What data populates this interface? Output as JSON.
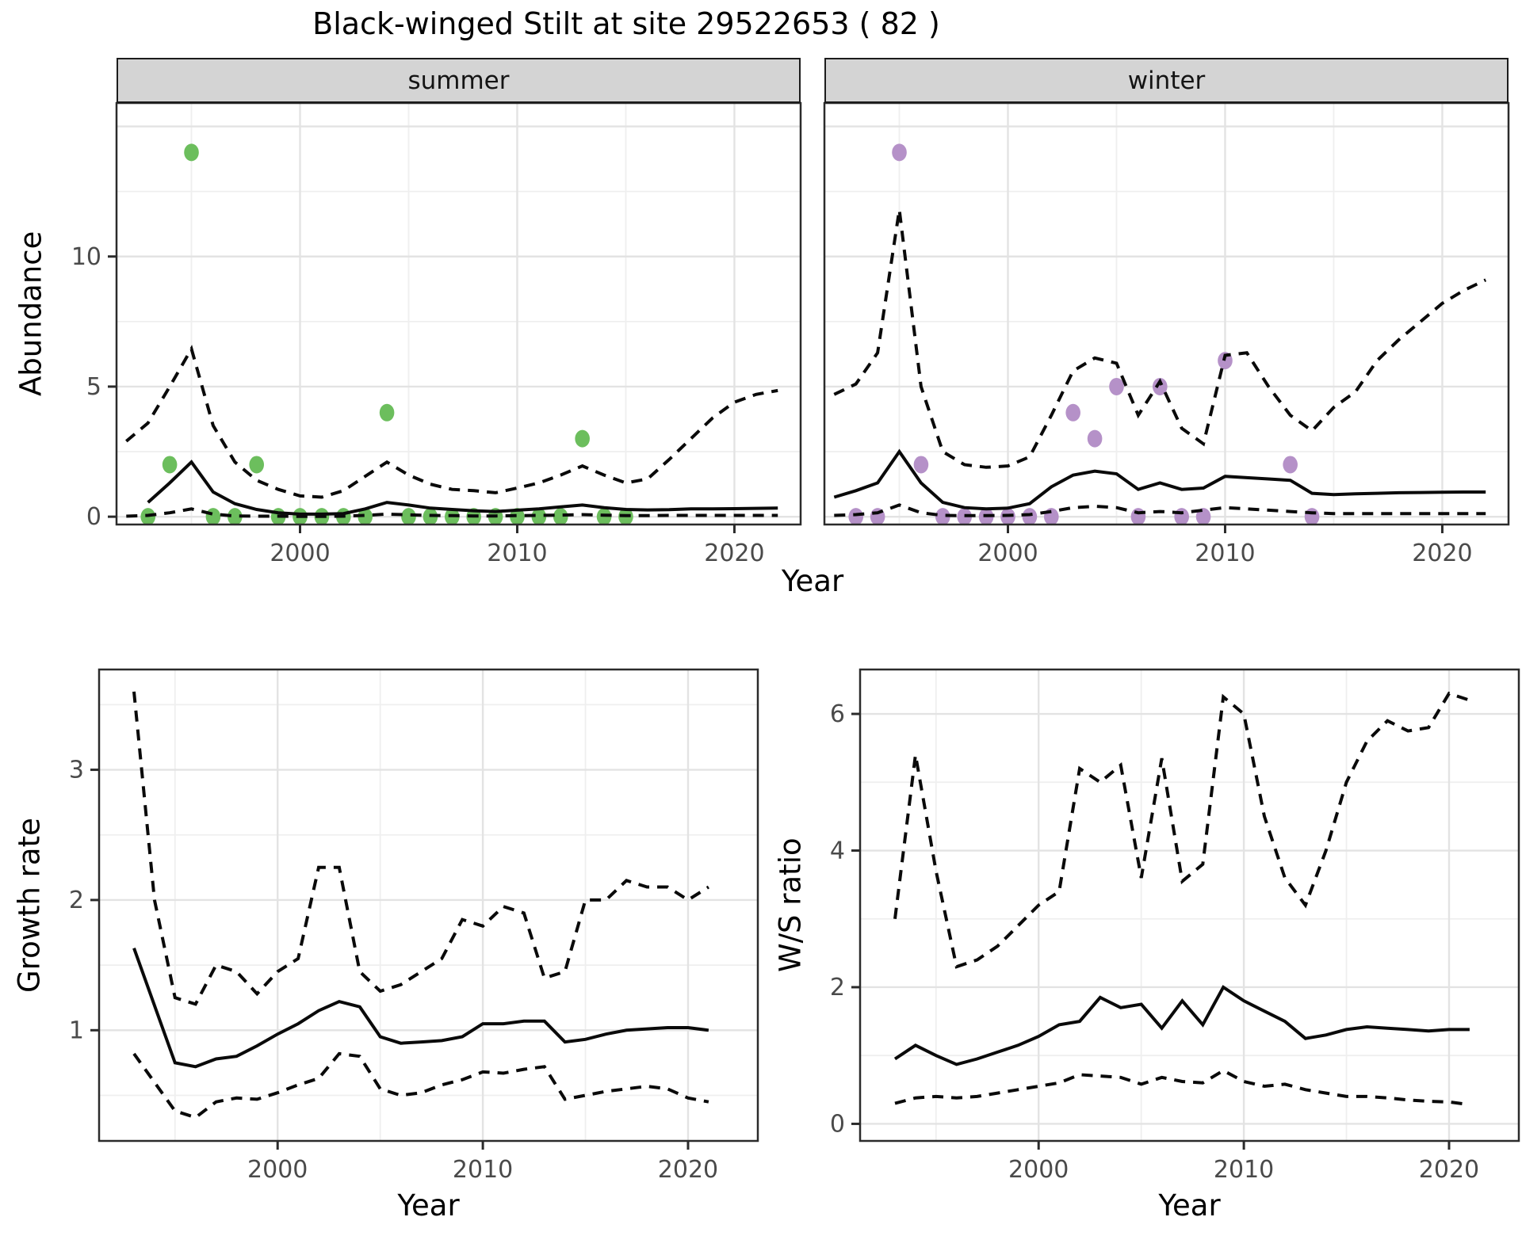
{
  "title": "Black-winged Stilt at site 29522653 ( 82 )",
  "facets": {
    "summer": "summer",
    "winter": "winter"
  },
  "axis_titles": {
    "abundance": "Abundance",
    "year": "Year",
    "growth": "Growth rate",
    "ws": "W/S ratio"
  },
  "colors": {
    "summer_point": "#6cbe5d",
    "winter_point": "#b591c8",
    "line": "#0a0a0a",
    "grid_major": "#e3e3e3",
    "grid_minor": "#efefef",
    "panel_border": "#2b2b2b",
    "tick_text": "#4a4a4a",
    "strip_bg": "#d4d4d4"
  },
  "chart_data": [
    {
      "key": "summer",
      "type": "line+scatter",
      "title": "summer",
      "xlabel": "Year",
      "ylabel": "Abundance",
      "xlim": [
        1991.55,
        2023.05
      ],
      "ylim": [
        -0.3,
        15.9
      ],
      "xticks": [
        2000,
        2010,
        2020
      ],
      "yticks": [
        0,
        5,
        10
      ],
      "show_y_labels": true,
      "xgrid_minor": [
        1995,
        2005,
        2015
      ],
      "ygrid_major": [
        0,
        5,
        10,
        15
      ],
      "ygrid_minor": [
        2.5,
        7.5,
        12.5
      ],
      "point_color": "#6cbe5d",
      "points": {
        "years": [
          1993,
          1994,
          1995,
          1996,
          1997,
          1998,
          1999,
          2000,
          2001,
          2002,
          2003,
          2004,
          2005,
          2006,
          2007,
          2008,
          2009,
          2010,
          2011,
          2012,
          2013,
          2014,
          2015
        ],
        "values": [
          0,
          2,
          14,
          0,
          0,
          2,
          0,
          0,
          0,
          0,
          0,
          4,
          0,
          0,
          0,
          0,
          0,
          0,
          0,
          0,
          3,
          0,
          0
        ]
      },
      "median": {
        "start_year": 1993,
        "values": [
          0.55,
          1.3,
          2.1,
          0.95,
          0.5,
          0.28,
          0.15,
          0.1,
          0.1,
          0.12,
          0.3,
          0.55,
          0.45,
          0.33,
          0.28,
          0.23,
          0.2,
          0.25,
          0.3,
          0.38,
          0.45,
          0.35,
          0.28,
          0.26,
          0.27,
          0.3,
          0.3,
          0.31,
          0.32,
          0.33
        ]
      },
      "upper_ci": {
        "start_year": 1992,
        "values": [
          2.9,
          3.6,
          5.0,
          6.45,
          3.5,
          2.1,
          1.4,
          1.05,
          0.8,
          0.75,
          1.0,
          1.55,
          2.1,
          1.6,
          1.25,
          1.05,
          1.0,
          0.92,
          1.1,
          1.3,
          1.6,
          1.95,
          1.6,
          1.3,
          1.45,
          2.2,
          3.0,
          3.8,
          4.4,
          4.7,
          4.85
        ]
      },
      "lower_ci": {
        "start_year": 1992,
        "values": [
          0.02,
          0.05,
          0.15,
          0.3,
          0.1,
          0.03,
          0.02,
          0.02,
          0.01,
          0.01,
          0.02,
          0.05,
          0.1,
          0.07,
          0.05,
          0.04,
          0.03,
          0.03,
          0.04,
          0.05,
          0.06,
          0.08,
          0.06,
          0.04,
          0.04,
          0.05,
          0.05,
          0.05,
          0.05,
          0.05,
          0.05
        ]
      }
    },
    {
      "key": "winter",
      "type": "line+scatter",
      "title": "winter",
      "xlabel": "Year",
      "ylabel": "Abundance",
      "xlim": [
        1991.55,
        2023.05
      ],
      "ylim": [
        -0.3,
        15.9
      ],
      "xticks": [
        2000,
        2010,
        2020
      ],
      "yticks": [
        0,
        5,
        10
      ],
      "show_y_labels": false,
      "xgrid_minor": [
        1995,
        2005,
        2015
      ],
      "ygrid_major": [
        0,
        5,
        10,
        15
      ],
      "ygrid_minor": [
        2.5,
        7.5,
        12.5
      ],
      "point_color": "#b591c8",
      "points": {
        "years": [
          1993,
          1994,
          1995,
          1996,
          1997,
          1998,
          1999,
          2000,
          2001,
          2002,
          2003,
          2004,
          2005,
          2006,
          2007,
          2008,
          2009,
          2010,
          2013,
          2014
        ],
        "values": [
          0,
          0,
          14,
          2,
          0,
          0,
          0,
          0,
          0,
          0,
          4,
          3,
          5,
          0,
          5,
          0,
          0,
          6,
          2,
          0
        ]
      },
      "median": {
        "start_year": 1992,
        "values": [
          0.75,
          1.0,
          1.3,
          2.5,
          1.3,
          0.55,
          0.35,
          0.3,
          0.33,
          0.5,
          1.15,
          1.6,
          1.75,
          1.65,
          1.05,
          1.3,
          1.05,
          1.1,
          1.55,
          1.5,
          1.45,
          1.4,
          0.9,
          0.85,
          0.88,
          0.9,
          0.92,
          0.93,
          0.94,
          0.95,
          0.95
        ]
      },
      "upper_ci": {
        "start_year": 1992,
        "values": [
          4.7,
          5.1,
          6.3,
          11.8,
          5.0,
          2.5,
          2.0,
          1.9,
          1.95,
          2.3,
          3.9,
          5.6,
          6.1,
          5.9,
          3.9,
          5.2,
          3.4,
          2.8,
          6.2,
          6.3,
          5.0,
          3.9,
          3.3,
          4.2,
          4.8,
          6.0,
          6.8,
          7.5,
          8.2,
          8.7,
          9.1
        ]
      },
      "lower_ci": {
        "start_year": 1992,
        "values": [
          0.05,
          0.08,
          0.15,
          0.45,
          0.15,
          0.05,
          0.04,
          0.04,
          0.05,
          0.08,
          0.2,
          0.35,
          0.4,
          0.35,
          0.15,
          0.2,
          0.15,
          0.25,
          0.35,
          0.3,
          0.25,
          0.2,
          0.15,
          0.12,
          0.12,
          0.12,
          0.12,
          0.12,
          0.12,
          0.12,
          0.12
        ]
      }
    },
    {
      "key": "growth",
      "type": "line",
      "title": "",
      "xlabel": "Year",
      "ylabel": "Growth rate",
      "xlim": [
        1991.3,
        2023.4
      ],
      "ylim": [
        0.15,
        3.77
      ],
      "xticks": [
        2000,
        2010,
        2020
      ],
      "yticks": [
        1,
        2,
        3
      ],
      "show_y_labels": true,
      "xgrid_minor": [
        1995,
        2005,
        2015
      ],
      "ygrid_major": [
        1,
        2,
        3
      ],
      "ygrid_minor": [
        0.5,
        1.5,
        2.5,
        3.5
      ],
      "median": {
        "start_year": 1993,
        "values": [
          1.63,
          1.19,
          0.75,
          0.72,
          0.78,
          0.8,
          0.88,
          0.97,
          1.05,
          1.15,
          1.22,
          1.18,
          0.95,
          0.9,
          0.91,
          0.92,
          0.95,
          1.05,
          1.05,
          1.07,
          1.07,
          0.91,
          0.93,
          0.97,
          1.0,
          1.01,
          1.02,
          1.02,
          1.0
        ]
      },
      "upper_ci": {
        "start_year": 1993,
        "values": [
          3.6,
          2.0,
          1.25,
          1.2,
          1.5,
          1.45,
          1.28,
          1.45,
          1.55,
          2.25,
          2.25,
          1.45,
          1.3,
          1.35,
          1.45,
          1.55,
          1.85,
          1.8,
          1.95,
          1.9,
          1.4,
          1.45,
          2.0,
          2.0,
          2.15,
          2.1,
          2.1,
          2.0,
          2.1
        ]
      },
      "lower_ci": {
        "start_year": 1993,
        "values": [
          0.82,
          0.6,
          0.38,
          0.33,
          0.45,
          0.48,
          0.47,
          0.52,
          0.58,
          0.63,
          0.82,
          0.8,
          0.55,
          0.5,
          0.52,
          0.58,
          0.62,
          0.68,
          0.67,
          0.7,
          0.72,
          0.47,
          0.5,
          0.53,
          0.55,
          0.57,
          0.55,
          0.48,
          0.45
        ]
      }
    },
    {
      "key": "ws",
      "type": "line",
      "title": "",
      "xlabel": "Year",
      "ylabel": "W/S ratio",
      "xlim": [
        1991.3,
        2023.4
      ],
      "ylim": [
        -0.25,
        6.65
      ],
      "xticks": [
        2000,
        2010,
        2020
      ],
      "yticks": [
        0,
        2,
        4,
        6
      ],
      "show_y_labels": true,
      "xgrid_minor": [
        1995,
        2005,
        2015
      ],
      "ygrid_major": [
        0,
        2,
        4,
        6
      ],
      "ygrid_minor": [
        1,
        3,
        5
      ],
      "median": {
        "start_year": 1993,
        "values": [
          0.95,
          1.15,
          1.0,
          0.87,
          0.95,
          1.05,
          1.15,
          1.28,
          1.45,
          1.5,
          1.85,
          1.7,
          1.75,
          1.4,
          1.8,
          1.45,
          2.0,
          1.8,
          1.65,
          1.5,
          1.25,
          1.3,
          1.38,
          1.42,
          1.4,
          1.38,
          1.36,
          1.38,
          1.38
        ]
      },
      "upper_ci": {
        "start_year": 1993,
        "values": [
          3.0,
          5.4,
          3.7,
          2.3,
          2.4,
          2.6,
          2.9,
          3.2,
          3.4,
          5.2,
          5.0,
          5.25,
          3.6,
          5.35,
          3.55,
          3.8,
          6.25,
          6.0,
          4.5,
          3.6,
          3.2,
          4.0,
          5.0,
          5.6,
          5.9,
          5.75,
          5.8,
          6.3,
          6.2
        ]
      },
      "lower_ci": {
        "start_year": 1993,
        "values": [
          0.3,
          0.38,
          0.4,
          0.38,
          0.4,
          0.45,
          0.5,
          0.55,
          0.6,
          0.72,
          0.7,
          0.68,
          0.58,
          0.68,
          0.62,
          0.6,
          0.78,
          0.62,
          0.55,
          0.58,
          0.5,
          0.45,
          0.4,
          0.4,
          0.38,
          0.35,
          0.33,
          0.32,
          0.28
        ]
      }
    }
  ]
}
